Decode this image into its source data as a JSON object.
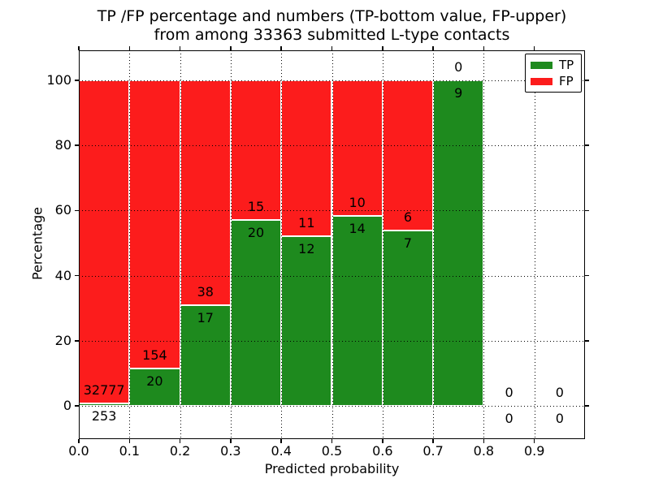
{
  "title": {
    "line1": "TP /FP percentage and numbers (TP-bottom value, FP-upper)",
    "line2": "from among 33363 submitted L-type contacts"
  },
  "axes": {
    "xlabel": "Predicted probability",
    "ylabel": "Percentage"
  },
  "legend": {
    "items": [
      {
        "label": "TP",
        "color": "#1e8a1e"
      },
      {
        "label": "FP",
        "color": "#fc1c1c"
      }
    ]
  },
  "chart_data": {
    "type": "bar",
    "stacked": true,
    "normalized_to_percent": true,
    "title": "TP /FP percentage and numbers (TP-bottom value, FP-upper) from among 33363 submitted L-type contacts",
    "total_submitted": 33363,
    "xlabel": "Predicted probability",
    "ylabel": "Percentage",
    "xlim": [
      0.0,
      1.0
    ],
    "bar_width": 0.1,
    "bin_starts": [
      0.0,
      0.1,
      0.2,
      0.3,
      0.4,
      0.5,
      0.6,
      0.7,
      0.8,
      0.9
    ],
    "categories": [
      "0.0-0.1",
      "0.1-0.2",
      "0.2-0.3",
      "0.3-0.4",
      "0.4-0.5",
      "0.5-0.6",
      "0.6-0.7",
      "0.7-0.8",
      "0.8-0.9",
      "0.9-1.0"
    ],
    "series": [
      {
        "name": "TP",
        "color": "#1e8a1e",
        "counts": [
          253,
          20,
          17,
          20,
          12,
          14,
          7,
          9,
          0,
          0
        ]
      },
      {
        "name": "FP",
        "color": "#fc1c1c",
        "counts": [
          32777,
          154,
          38,
          15,
          11,
          10,
          6,
          0,
          0,
          0
        ]
      }
    ],
    "xticks": [
      "0.0",
      "0.1",
      "0.2",
      "0.3",
      "0.4",
      "0.5",
      "0.6",
      "0.7",
      "0.8",
      "0.9"
    ],
    "yticks": [
      0,
      20,
      40,
      60,
      80,
      100
    ],
    "grid": "dotted",
    "legend_position": "upper right"
  }
}
